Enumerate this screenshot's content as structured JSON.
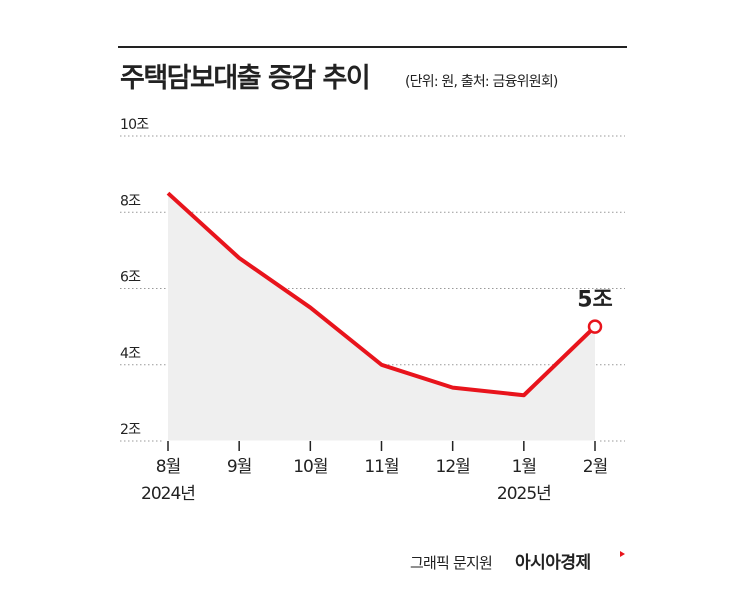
{
  "chart_data": {
    "type": "line",
    "title": "주택담보대출 증감 추이",
    "subtitle": "(단위: 원, 출처: 금융위원회)",
    "categories": [
      "8월\n2024년",
      "9월",
      "10월",
      "11월",
      "12월",
      "1월\n2025년",
      "2월"
    ],
    "values": [
      8.5,
      6.8,
      5.5,
      4.0,
      3.4,
      3.2,
      5.0
    ],
    "value_labels": [
      null,
      null,
      null,
      null,
      null,
      null,
      "5조"
    ],
    "color": "#e8141c",
    "area_color": "#efefef",
    "ylim": [
      2,
      10
    ],
    "yticks": [
      {
        "value": 2,
        "label": "2조"
      },
      {
        "value": 4,
        "label": "4조"
      },
      {
        "value": 6,
        "label": "6조"
      },
      {
        "value": 8,
        "label": "8조"
      },
      {
        "value": 10,
        "label": "10조"
      }
    ],
    "grid": true,
    "credit": "그래픽 문지원",
    "brand": "아시아경제"
  }
}
